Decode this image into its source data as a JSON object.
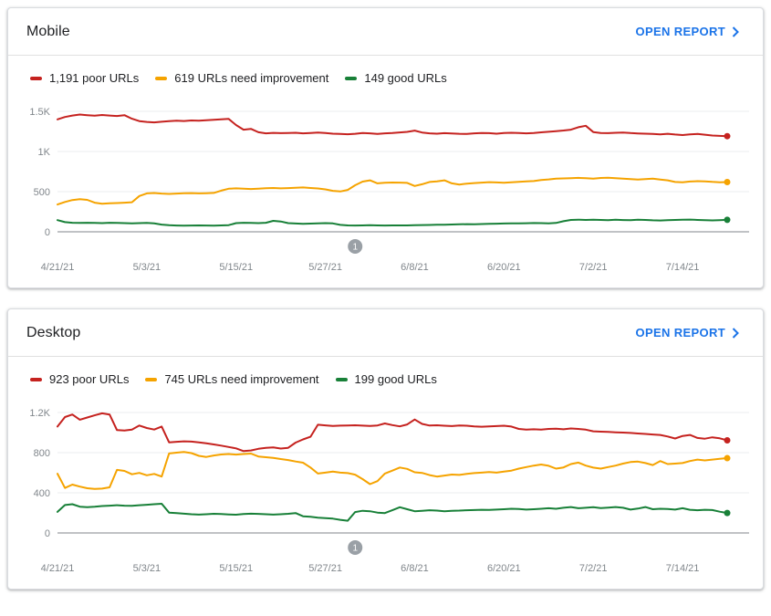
{
  "colors": {
    "poor": "#c5221f",
    "needs_improvement": "#f5a300",
    "good": "#188038",
    "link": "#1a73e8",
    "axis_text": "#80868b",
    "gridline": "#ebedef",
    "axis_line": "#80868b",
    "marker_bg": "#9aa0a6",
    "marker_text": "#ffffff"
  },
  "cards": [
    {
      "title": "Mobile",
      "open_report_label": "OPEN REPORT",
      "legend": [
        {
          "label": "1,191 poor URLs",
          "color": "#c5221f"
        },
        {
          "label": "619 URLs need improvement",
          "color": "#f5a300"
        },
        {
          "label": "149 good URLs",
          "color": "#188038"
        }
      ]
    },
    {
      "title": "Desktop",
      "open_report_label": "OPEN REPORT",
      "legend": [
        {
          "label": "923 poor URLs",
          "color": "#c5221f"
        },
        {
          "label": "745 URLs need improvement",
          "color": "#f5a300"
        },
        {
          "label": "199 good URLs",
          "color": "#188038"
        }
      ]
    }
  ],
  "chart_data": [
    {
      "type": "line",
      "title": "Mobile",
      "ylim": [
        0,
        1500
      ],
      "y_tick_labels": [
        "1.5K",
        "1K",
        "500",
        "0"
      ],
      "x_tick_labels": [
        "4/21/21",
        "5/3/21",
        "5/15/21",
        "5/27/21",
        "6/8/21",
        "6/20/21",
        "7/2/21",
        "7/14/21"
      ],
      "x_tick_day_indices": [
        0,
        12,
        24,
        36,
        48,
        60,
        72,
        84
      ],
      "x_range_days": 90,
      "grid": true,
      "legend_position": "top",
      "annotation_marker": {
        "label": "1",
        "day_index": 40
      },
      "series": [
        {
          "name": "poor URLs",
          "color": "#c5221f",
          "values": [
            1400,
            1430,
            1448,
            1460,
            1452,
            1445,
            1455,
            1448,
            1442,
            1452,
            1408,
            1378,
            1368,
            1362,
            1370,
            1377,
            1384,
            1380,
            1386,
            1383,
            1390,
            1396,
            1401,
            1406,
            1330,
            1272,
            1282,
            1240,
            1226,
            1232,
            1228,
            1231,
            1233,
            1226,
            1231,
            1236,
            1229,
            1222,
            1218,
            1215,
            1221,
            1231,
            1226,
            1219,
            1226,
            1231,
            1238,
            1244,
            1260,
            1236,
            1226,
            1222,
            1228,
            1225,
            1221,
            1218,
            1226,
            1231,
            1228,
            1222,
            1229,
            1233,
            1229,
            1226,
            1231,
            1239,
            1246,
            1253,
            1261,
            1272,
            1302,
            1320,
            1242,
            1231,
            1228,
            1233,
            1236,
            1230,
            1225,
            1222,
            1218,
            1214,
            1220,
            1211,
            1204,
            1212,
            1218,
            1209,
            1199,
            1194,
            1191
          ]
        },
        {
          "name": "URLs need improvement",
          "color": "#f5a300",
          "values": [
            340,
            372,
            396,
            406,
            398,
            362,
            350,
            354,
            358,
            362,
            368,
            446,
            478,
            483,
            476,
            472,
            476,
            479,
            482,
            478,
            481,
            484,
            512,
            536,
            541,
            538,
            533,
            537,
            543,
            546,
            541,
            544,
            549,
            552,
            545,
            540,
            528,
            510,
            502,
            522,
            580,
            625,
            641,
            603,
            611,
            614,
            612,
            609,
            571,
            592,
            621,
            628,
            641,
            603,
            589,
            600,
            607,
            612,
            618,
            615,
            611,
            617,
            622,
            627,
            632,
            645,
            652,
            661,
            665,
            668,
            672,
            667,
            661,
            670,
            673,
            668,
            661,
            656,
            651,
            656,
            661,
            651,
            641,
            621,
            616,
            626,
            631,
            628,
            622,
            617,
            619
          ]
        },
        {
          "name": "good URLs",
          "color": "#188038",
          "values": [
            145,
            120,
            113,
            110,
            112,
            110,
            108,
            112,
            110,
            108,
            106,
            108,
            110,
            104,
            90,
            82,
            78,
            76,
            78,
            80,
            78,
            76,
            79,
            83,
            108,
            112,
            110,
            108,
            113,
            136,
            128,
            108,
            103,
            100,
            102,
            105,
            108,
            104,
            86,
            80,
            78,
            80,
            82,
            80,
            78,
            80,
            79,
            80,
            82,
            84,
            85,
            87,
            89,
            91,
            93,
            95,
            94,
            97,
            99,
            101,
            103,
            105,
            104,
            107,
            109,
            108,
            106,
            110,
            132,
            148,
            151,
            148,
            150,
            148,
            146,
            150,
            147,
            144,
            150,
            148,
            143,
            141,
            145,
            148,
            151,
            152,
            148,
            144,
            142,
            146,
            149
          ]
        }
      ]
    },
    {
      "type": "line",
      "title": "Desktop",
      "ylim": [
        0,
        1200
      ],
      "y_tick_labels": [
        "1.2K",
        "800",
        "400",
        "0"
      ],
      "x_tick_labels": [
        "4/21/21",
        "5/3/21",
        "5/15/21",
        "5/27/21",
        "6/8/21",
        "6/20/21",
        "7/2/21",
        "7/14/21"
      ],
      "x_tick_day_indices": [
        0,
        12,
        24,
        36,
        48,
        60,
        72,
        84
      ],
      "x_range_days": 90,
      "grid": true,
      "legend_position": "top",
      "annotation_marker": {
        "label": "1",
        "day_index": 40
      },
      "series": [
        {
          "name": "poor URLs",
          "color": "#c5221f",
          "values": [
            1060,
            1155,
            1180,
            1128,
            1150,
            1172,
            1192,
            1180,
            1025,
            1020,
            1030,
            1070,
            1045,
            1030,
            1060,
            903,
            908,
            913,
            910,
            903,
            893,
            882,
            870,
            856,
            843,
            815,
            822,
            838,
            848,
            852,
            841,
            848,
            900,
            932,
            958,
            1078,
            1072,
            1066,
            1069,
            1071,
            1073,
            1069,
            1066,
            1071,
            1091,
            1075,
            1062,
            1081,
            1130,
            1086,
            1070,
            1073,
            1068,
            1065,
            1070,
            1068,
            1062,
            1058,
            1062,
            1065,
            1068,
            1060,
            1036,
            1030,
            1033,
            1029,
            1036,
            1039,
            1033,
            1041,
            1036,
            1029,
            1013,
            1009,
            1006,
            1003,
            1000,
            996,
            991,
            986,
            981,
            976,
            961,
            941,
            966,
            976,
            946,
            939,
            953,
            943,
            923
          ]
        },
        {
          "name": "URLs need improvement",
          "color": "#f5a300",
          "values": [
            590,
            448,
            482,
            462,
            445,
            438,
            442,
            455,
            628,
            618,
            585,
            598,
            575,
            588,
            562,
            792,
            800,
            806,
            795,
            768,
            757,
            772,
            782,
            786,
            781,
            786,
            791,
            762,
            755,
            748,
            736,
            726,
            712,
            700,
            652,
            592,
            601,
            611,
            601,
            596,
            581,
            536,
            486,
            516,
            592,
            621,
            652,
            638,
            605,
            598,
            576,
            562,
            572,
            582,
            578,
            588,
            596,
            601,
            606,
            601,
            611,
            621,
            641,
            656,
            671,
            682,
            669,
            641,
            653,
            686,
            701,
            671,
            651,
            641,
            656,
            671,
            691,
            706,
            711,
            696,
            676,
            716,
            686,
            691,
            696,
            716,
            731,
            723,
            731,
            738,
            745
          ]
        },
        {
          "name": "good URLs",
          "color": "#188038",
          "values": [
            210,
            278,
            286,
            262,
            257,
            262,
            268,
            272,
            276,
            272,
            270,
            276,
            281,
            286,
            291,
            203,
            197,
            192,
            186,
            183,
            186,
            191,
            188,
            185,
            182,
            188,
            192,
            190,
            186,
            183,
            186,
            191,
            198,
            166,
            161,
            153,
            148,
            143,
            131,
            122,
            208,
            221,
            216,
            203,
            198,
            226,
            256,
            236,
            216,
            221,
            226,
            223,
            216,
            221,
            223,
            226,
            228,
            231,
            229,
            233,
            236,
            241,
            238,
            233,
            236,
            241,
            246,
            241,
            251,
            258,
            246,
            251,
            256,
            248,
            253,
            258,
            251,
            233,
            243,
            258,
            236,
            241,
            238,
            233,
            246,
            231,
            226,
            231,
            228,
            212,
            199
          ]
        }
      ]
    }
  ]
}
